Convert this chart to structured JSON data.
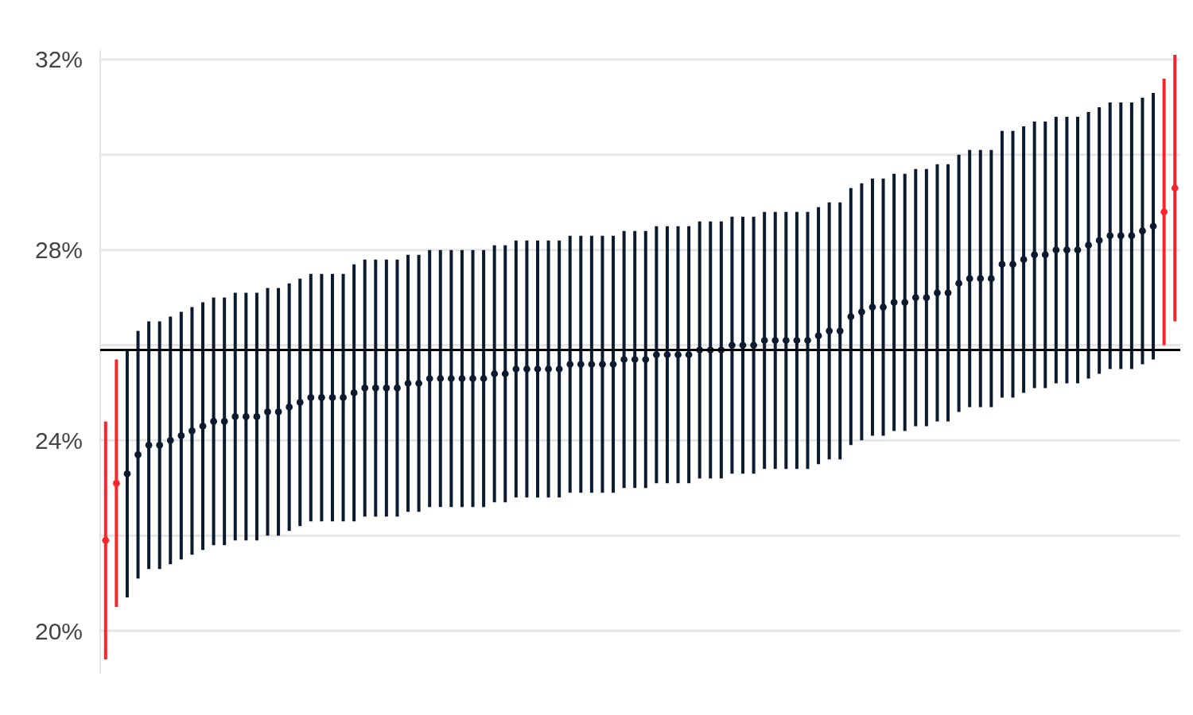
{
  "chart_data": {
    "type": "scatter",
    "categories": [
      null,
      null,
      null,
      null,
      null,
      null,
      null,
      null,
      null,
      null,
      null,
      null,
      null,
      null,
      null,
      null,
      null,
      null,
      null,
      null,
      null,
      null,
      null,
      null,
      null,
      null,
      null,
      null,
      null,
      null,
      null,
      null,
      null,
      null,
      null,
      null,
      null,
      null,
      null,
      null,
      null,
      null,
      null,
      null,
      null,
      null,
      null,
      null,
      null,
      null,
      null,
      null,
      null,
      null,
      null,
      null,
      null,
      null,
      null,
      null,
      null,
      null,
      null,
      null,
      null,
      null,
      null,
      null,
      null,
      null,
      null,
      null,
      null,
      null,
      null,
      null,
      null,
      null,
      null,
      null,
      null,
      null,
      null,
      null,
      null,
      null,
      null,
      null,
      null,
      null,
      null,
      null,
      null,
      null,
      null,
      null,
      null,
      null,
      null,
      null
    ],
    "values": [
      21.9,
      23.1,
      23.3,
      23.7,
      23.9,
      23.9,
      24.0,
      24.1,
      24.2,
      24.3,
      24.4,
      24.4,
      24.5,
      24.5,
      24.5,
      24.6,
      24.6,
      24.7,
      24.8,
      24.9,
      24.9,
      24.9,
      24.9,
      25.0,
      25.1,
      25.1,
      25.1,
      25.1,
      25.2,
      25.2,
      25.3,
      25.3,
      25.3,
      25.3,
      25.3,
      25.3,
      25.4,
      25.4,
      25.5,
      25.5,
      25.5,
      25.5,
      25.5,
      25.6,
      25.6,
      25.6,
      25.6,
      25.6,
      25.7,
      25.7,
      25.7,
      25.8,
      25.8,
      25.8,
      25.8,
      25.9,
      25.9,
      25.9,
      26.0,
      26.0,
      26.0,
      26.1,
      26.1,
      26.1,
      26.1,
      26.1,
      26.2,
      26.3,
      26.3,
      26.6,
      26.7,
      26.8,
      26.8,
      26.9,
      26.9,
      27.0,
      27.0,
      27.1,
      27.1,
      27.3,
      27.4,
      27.4,
      27.4,
      27.7,
      27.7,
      27.8,
      27.9,
      27.9,
      28.0,
      28.0,
      28.0,
      28.1,
      28.2,
      28.3,
      28.3,
      28.3,
      28.4,
      28.5,
      28.8,
      29.3
    ],
    "errors": [
      2.5,
      2.6,
      2.6,
      2.6,
      2.6,
      2.6,
      2.6,
      2.6,
      2.6,
      2.6,
      2.6,
      2.6,
      2.6,
      2.6,
      2.6,
      2.6,
      2.6,
      2.6,
      2.6,
      2.6,
      2.6,
      2.6,
      2.6,
      2.7,
      2.7,
      2.7,
      2.7,
      2.7,
      2.7,
      2.7,
      2.7,
      2.7,
      2.7,
      2.7,
      2.7,
      2.7,
      2.7,
      2.7,
      2.7,
      2.7,
      2.7,
      2.7,
      2.7,
      2.7,
      2.7,
      2.7,
      2.7,
      2.7,
      2.7,
      2.7,
      2.7,
      2.7,
      2.7,
      2.7,
      2.7,
      2.7,
      2.7,
      2.7,
      2.7,
      2.7,
      2.7,
      2.7,
      2.7,
      2.7,
      2.7,
      2.7,
      2.7,
      2.7,
      2.7,
      2.7,
      2.7,
      2.7,
      2.7,
      2.7,
      2.7,
      2.7,
      2.7,
      2.7,
      2.7,
      2.7,
      2.7,
      2.7,
      2.7,
      2.8,
      2.8,
      2.8,
      2.8,
      2.8,
      2.8,
      2.8,
      2.8,
      2.8,
      2.8,
      2.8,
      2.8,
      2.8,
      2.8,
      2.8,
      2.8,
      2.8
    ],
    "colors": [
      "#f8262c",
      "#f8262c",
      "#0c1a30",
      "#0c1a30",
      "#0c1a30",
      "#0c1a30",
      "#0c1a30",
      "#0c1a30",
      "#0c1a30",
      "#0c1a30",
      "#0c1a30",
      "#0c1a30",
      "#0c1a30",
      "#0c1a30",
      "#0c1a30",
      "#0c1a30",
      "#0c1a30",
      "#0c1a30",
      "#0c1a30",
      "#0c1a30",
      "#0c1a30",
      "#0c1a30",
      "#0c1a30",
      "#0c1a30",
      "#0c1a30",
      "#0c1a30",
      "#0c1a30",
      "#0c1a30",
      "#0c1a30",
      "#0c1a30",
      "#0c1a30",
      "#0c1a30",
      "#0c1a30",
      "#0c1a30",
      "#0c1a30",
      "#0c1a30",
      "#0c1a30",
      "#0c1a30",
      "#0c1a30",
      "#0c1a30",
      "#0c1a30",
      "#0c1a30",
      "#0c1a30",
      "#0c1a30",
      "#0c1a30",
      "#0c1a30",
      "#0c1a30",
      "#0c1a30",
      "#0c1a30",
      "#0c1a30",
      "#0c1a30",
      "#0c1a30",
      "#0c1a30",
      "#0c1a30",
      "#0c1a30",
      "#0c1a30",
      "#0c1a30",
      "#0c1a30",
      "#0c1a30",
      "#0c1a30",
      "#0c1a30",
      "#0c1a30",
      "#0c1a30",
      "#0c1a30",
      "#0c1a30",
      "#0c1a30",
      "#0c1a30",
      "#0c1a30",
      "#0c1a30",
      "#0c1a30",
      "#0c1a30",
      "#0c1a30",
      "#0c1a30",
      "#0c1a30",
      "#0c1a30",
      "#0c1a30",
      "#0c1a30",
      "#0c1a30",
      "#0c1a30",
      "#0c1a30",
      "#0c1a30",
      "#0c1a30",
      "#0c1a30",
      "#0c1a30",
      "#0c1a30",
      "#0c1a30",
      "#0c1a30",
      "#0c1a30",
      "#0c1a30",
      "#0c1a30",
      "#0c1a30",
      "#0c1a30",
      "#0c1a30",
      "#0c1a30",
      "#0c1a30",
      "#0c1a30",
      "#0c1a30",
      "#0c1a30",
      "#f8262c",
      "#f8262c"
    ],
    "ylim": [
      19.1,
      32.2
    ],
    "yticks": [
      {
        "value": 20,
        "label": "20%"
      },
      {
        "value": 22,
        "label": null
      },
      {
        "value": 24,
        "label": "24%"
      },
      {
        "value": 26,
        "label": null
      },
      {
        "value": 28,
        "label": "28%"
      },
      {
        "value": 30,
        "label": null
      },
      {
        "value": 32,
        "label": "32%"
      }
    ],
    "grid": "y",
    "marker": "circle",
    "tick_labels": "y",
    "ref_lines": [
      {
        "axis": "y",
        "value": 25.9,
        "color": "#000000"
      }
    ]
  }
}
